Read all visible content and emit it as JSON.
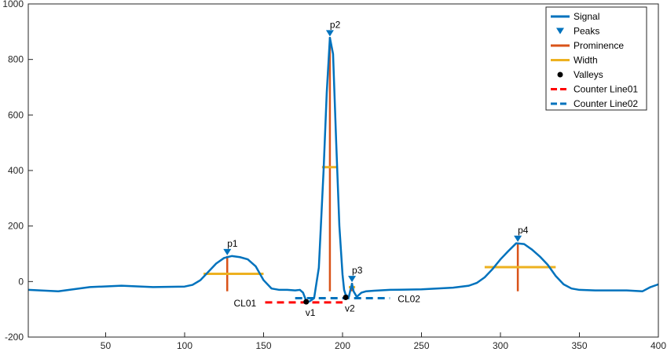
{
  "chart_data": {
    "type": "line",
    "xlim": [
      1,
      400
    ],
    "ylim": [
      -200,
      1000
    ],
    "xticks": [
      50,
      100,
      150,
      200,
      250,
      300,
      350,
      400
    ],
    "yticks": [
      -200,
      0,
      200,
      400,
      600,
      800,
      1000
    ],
    "grid": false,
    "legend_placement": "top-right",
    "colors": {
      "signal": "#0072BD",
      "prominence": "#D95319",
      "width": "#EDB120",
      "valleys": "#000000",
      "cl01": "#FF0000",
      "cl02": "#0072BD"
    },
    "legend": [
      "Signal",
      "Peaks",
      "Prominence",
      "Width",
      "Valleys",
      "Counter Line01",
      "Counter Line02"
    ],
    "signal": {
      "x": [
        1,
        20,
        40,
        60,
        80,
        100,
        105,
        110,
        115,
        120,
        125,
        130,
        135,
        140,
        145,
        150,
        155,
        160,
        165,
        170,
        173,
        175,
        177,
        179,
        182,
        185,
        188,
        190,
        192,
        194,
        196,
        198,
        200,
        201,
        202,
        204,
        205,
        206,
        207,
        209,
        212,
        215,
        220,
        230,
        250,
        270,
        280,
        285,
        290,
        295,
        300,
        305,
        310,
        315,
        320,
        325,
        330,
        335,
        340,
        345,
        350,
        360,
        380,
        390,
        395,
        400
      ],
      "y": [
        -30,
        -35,
        -20,
        -15,
        -20,
        -18,
        -12,
        5,
        35,
        65,
        85,
        92,
        88,
        80,
        55,
        5,
        -25,
        -30,
        -30,
        -32,
        -30,
        -40,
        -70,
        -72,
        -60,
        50,
        400,
        680,
        878,
        820,
        500,
        200,
        25,
        -30,
        -48,
        -55,
        -30,
        -8,
        -35,
        -55,
        -40,
        -35,
        -33,
        -30,
        -28,
        -22,
        -15,
        -5,
        15,
        45,
        80,
        110,
        138,
        135,
        115,
        90,
        60,
        20,
        -10,
        -25,
        -30,
        -32,
        -32,
        -35,
        -20,
        -10
      ]
    },
    "peaks": [
      {
        "label": "p1",
        "x": 127,
        "y": 92
      },
      {
        "label": "p2",
        "x": 192,
        "y": 880
      },
      {
        "label": "p3",
        "x": 206,
        "y": -5
      },
      {
        "label": "p4",
        "x": 311,
        "y": 140
      }
    ],
    "prominence": [
      {
        "x": 127,
        "y1": -35,
        "y2": 92
      },
      {
        "x": 192,
        "y1": -35,
        "y2": 880
      },
      {
        "x": 206,
        "y1": -35,
        "y2": -5
      },
      {
        "x": 311,
        "y1": -35,
        "y2": 140
      }
    ],
    "widths": [
      {
        "x1": 112,
        "x2": 150,
        "y": 28
      },
      {
        "x1": 187,
        "x2": 197,
        "y": 412
      },
      {
        "x1": 204,
        "x2": 208,
        "y": -20
      },
      {
        "x1": 290,
        "x2": 335,
        "y": 52
      }
    ],
    "valleys": [
      {
        "label": "v1",
        "x": 177,
        "y": -73
      },
      {
        "label": "v2",
        "x": 202,
        "y": -57
      }
    ],
    "counter_lines": [
      {
        "label": "CL01",
        "x1": 151,
        "x2": 200,
        "y": -75
      },
      {
        "label": "CL02",
        "x1": 170,
        "x2": 230,
        "y": -60
      }
    ]
  }
}
